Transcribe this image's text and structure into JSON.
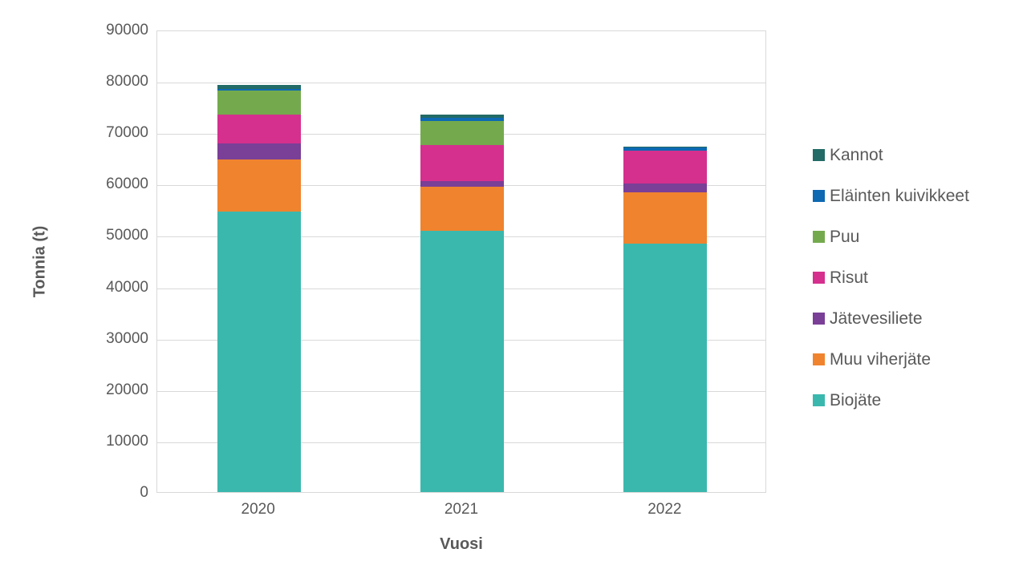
{
  "chart_data": {
    "type": "bar",
    "stacked": true,
    "title": "",
    "xlabel": "Vuosi",
    "ylabel": "Tonnia (t)",
    "categories": [
      "2020",
      "2021",
      "2022"
    ],
    "ylim": [
      0,
      90000
    ],
    "ytick_step": 10000,
    "ytick_labels": [
      "0",
      "10000",
      "20000",
      "30000",
      "40000",
      "50000",
      "60000",
      "70000",
      "80000",
      "90000"
    ],
    "grid": true,
    "legend_position": "right",
    "series": [
      {
        "name": "Kannot",
        "color": "#226B66",
        "values": [
          800,
          600,
          200
        ]
      },
      {
        "name": "Eläinten kuivikkeet",
        "color": "#0E68B2",
        "values": [
          300,
          700,
          600
        ]
      },
      {
        "name": "Puu",
        "color": "#74AA4D",
        "values": [
          4700,
          4600,
          0
        ]
      },
      {
        "name": "Risut",
        "color": "#D5308E",
        "values": [
          5600,
          7000,
          6400
        ]
      },
      {
        "name": "Jätevesiliete",
        "color": "#7A3F97",
        "values": [
          3100,
          1200,
          1700
        ]
      },
      {
        "name": "Muu viherjäte",
        "color": "#F0832E",
        "values": [
          10200,
          8600,
          9900
        ]
      },
      {
        "name": "Biojäte",
        "color": "#3BB8AE",
        "values": [
          54600,
          50800,
          48400
        ]
      }
    ],
    "totals": [
      79300,
      73500,
      67200
    ]
  },
  "colors": {
    "text": "#595959",
    "gridline": "#d9d9d9",
    "background": "#ffffff"
  }
}
